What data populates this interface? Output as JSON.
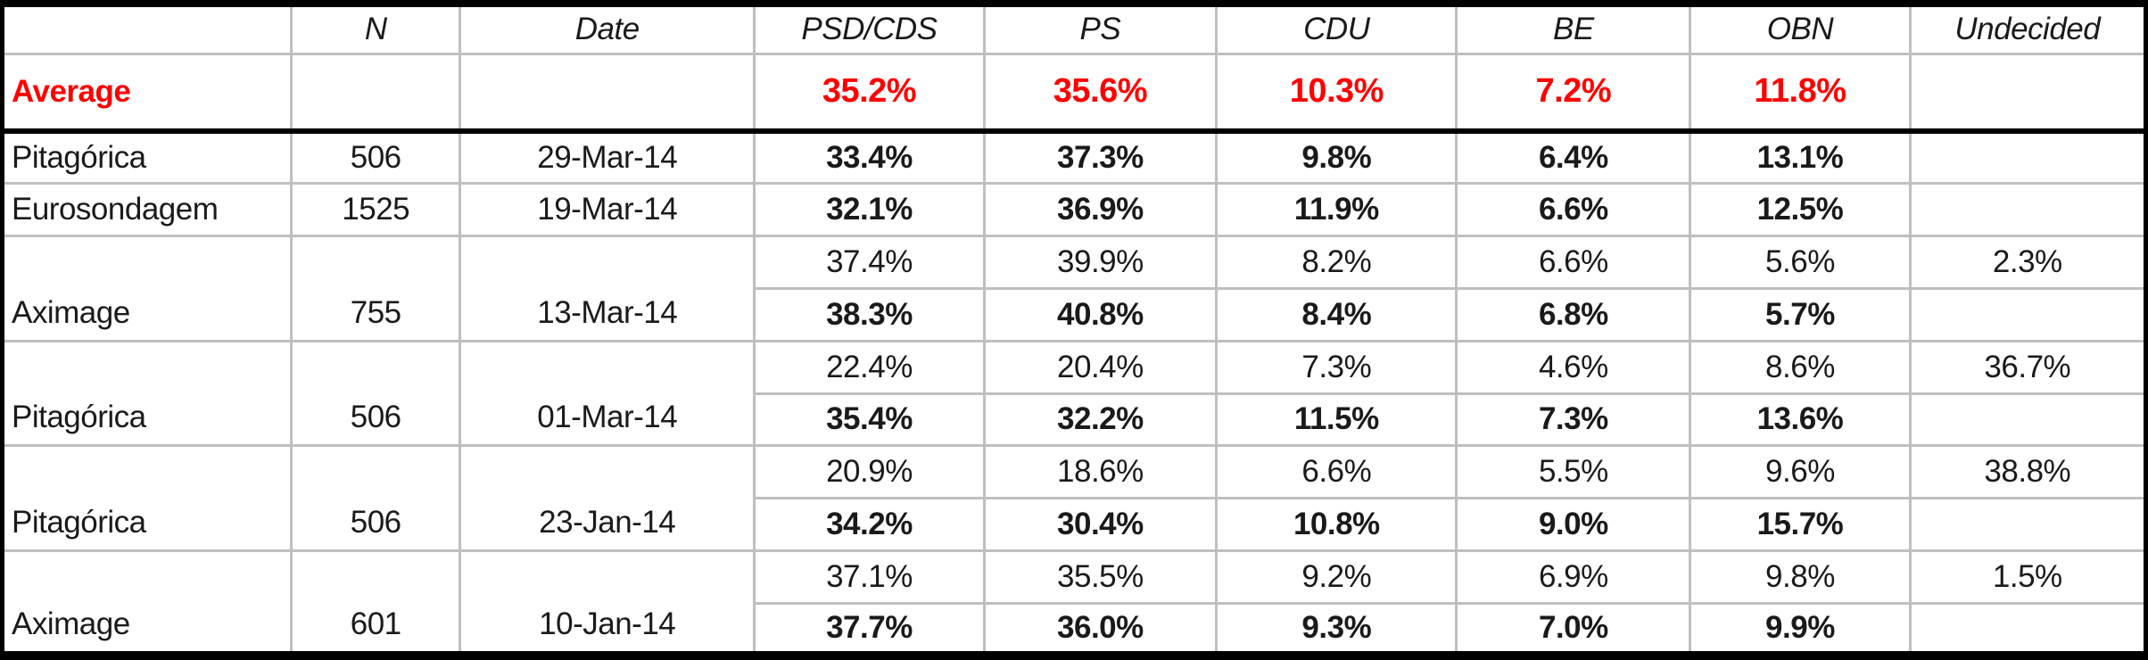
{
  "colors": {
    "average_red": "#FF0000",
    "gridline_gray": "#BFBFBF",
    "frame_black": "#000000",
    "background": "#FFFFFF"
  },
  "chart_data": {
    "type": "table",
    "columns": [
      "",
      "N",
      "Date",
      "PSD/CDS",
      "PS",
      "CDU",
      "BE",
      "OBN",
      "Undecided"
    ],
    "column_keys": [
      "source",
      "n",
      "date",
      "psd-cds",
      "ps",
      "cdu",
      "be",
      "obn",
      "undecided"
    ],
    "average_row": {
      "label": "Average",
      "values": [
        "35.2%",
        "35.6%",
        "10.3%",
        "7.2%",
        "11.8%",
        ""
      ]
    },
    "poll_groups": [
      {
        "source": "Pitagórica",
        "n": "506",
        "date": "29-Mar-14",
        "rows": [
          {
            "style": "bold",
            "values": [
              "33.4%",
              "37.3%",
              "9.8%",
              "6.4%",
              "13.1%",
              ""
            ]
          }
        ]
      },
      {
        "source": "Eurosondagem",
        "n": "1525",
        "date": "19-Mar-14",
        "rows": [
          {
            "style": "bold",
            "values": [
              "32.1%",
              "36.9%",
              "11.9%",
              "6.6%",
              "12.5%",
              ""
            ]
          }
        ]
      },
      {
        "source": "Aximage",
        "n": "755",
        "date": "13-Mar-14",
        "rows": [
          {
            "style": "normal",
            "values": [
              "37.4%",
              "39.9%",
              "8.2%",
              "6.6%",
              "5.6%",
              "2.3%"
            ]
          },
          {
            "style": "bold",
            "values": [
              "38.3%",
              "40.8%",
              "8.4%",
              "6.8%",
              "5.7%",
              ""
            ]
          }
        ]
      },
      {
        "source": "Pitagórica",
        "n": "506",
        "date": "01-Mar-14",
        "rows": [
          {
            "style": "normal",
            "values": [
              "22.4%",
              "20.4%",
              "7.3%",
              "4.6%",
              "8.6%",
              "36.7%"
            ]
          },
          {
            "style": "bold",
            "values": [
              "35.4%",
              "32.2%",
              "11.5%",
              "7.3%",
              "13.6%",
              ""
            ]
          }
        ]
      },
      {
        "source": "Pitagórica",
        "n": "506",
        "date": "23-Jan-14",
        "rows": [
          {
            "style": "normal",
            "values": [
              "20.9%",
              "18.6%",
              "6.6%",
              "5.5%",
              "9.6%",
              "38.8%"
            ]
          },
          {
            "style": "bold",
            "values": [
              "34.2%",
              "30.4%",
              "10.8%",
              "9.0%",
              "15.7%",
              ""
            ]
          }
        ]
      },
      {
        "source": "Aximage",
        "n": "601",
        "date": "10-Jan-14",
        "rows": [
          {
            "style": "normal",
            "values": [
              "37.1%",
              "35.5%",
              "9.2%",
              "6.9%",
              "9.8%",
              "1.5%"
            ]
          },
          {
            "style": "bold",
            "values": [
              "37.7%",
              "36.0%",
              "9.3%",
              "7.0%",
              "9.9%",
              ""
            ]
          }
        ]
      }
    ]
  }
}
